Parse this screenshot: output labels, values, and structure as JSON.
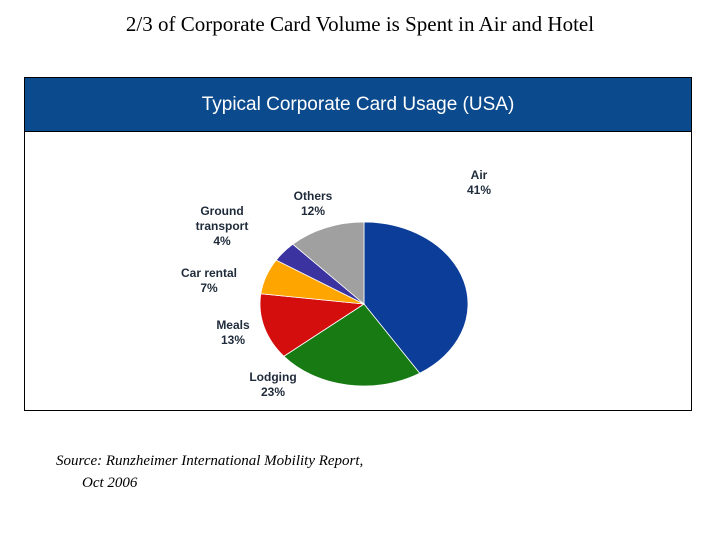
{
  "slide": {
    "title": "2/3 of Corporate Card Volume is Spent in Air and Hotel"
  },
  "chart_data": {
    "type": "pie",
    "title": "Typical Corporate Card Usage (USA)",
    "slices": [
      {
        "label": "Air",
        "value": 41,
        "value_label": "41%",
        "color": "#0b3d99"
      },
      {
        "label": "Lodging",
        "value": 23,
        "value_label": "23%",
        "color": "#177a12"
      },
      {
        "label": "Meals",
        "value": 13,
        "value_label": "13%",
        "color": "#d40d0d"
      },
      {
        "label": "Car rental",
        "value": 7,
        "value_label": "7%",
        "color": "#ffa500"
      },
      {
        "label": "Ground transport",
        "value": 4,
        "value_label": "4%",
        "color": "#3a33a0"
      },
      {
        "label": "Others",
        "value": 12,
        "value_label": "12%",
        "color": "#a0a0a0"
      }
    ],
    "start_angle_deg": 0,
    "direction": "clockwise",
    "legend": "none",
    "header_color": "#0b4a8c"
  },
  "source": {
    "line1": "Source: Runzheimer International Mobility Report,",
    "line2": "Oct 2006"
  }
}
